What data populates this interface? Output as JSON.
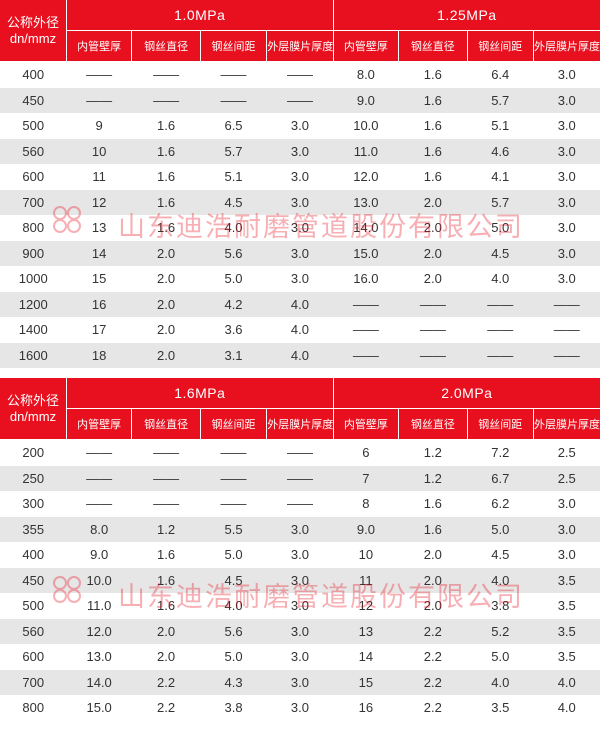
{
  "header": {
    "dn_label_line1": "公称外径",
    "dn_label_line2": "dn/mmz",
    "sub_columns": [
      "内管壁厚",
      "钢丝直径",
      "钢丝间距",
      "外层膜片厚度"
    ]
  },
  "tables": [
    {
      "pressures": [
        "1.0MPa",
        "1.25MPa"
      ],
      "rows": [
        [
          "400",
          "——",
          "——",
          "——",
          "——",
          "8.0",
          "1.6",
          "6.4",
          "3.0"
        ],
        [
          "450",
          "——",
          "——",
          "——",
          "——",
          "9.0",
          "1.6",
          "5.7",
          "3.0"
        ],
        [
          "500",
          "9",
          "1.6",
          "6.5",
          "3.0",
          "10.0",
          "1.6",
          "5.1",
          "3.0"
        ],
        [
          "560",
          "10",
          "1.6",
          "5.7",
          "3.0",
          "11.0",
          "1.6",
          "4.6",
          "3.0"
        ],
        [
          "600",
          "11",
          "1.6",
          "5.1",
          "3.0",
          "12.0",
          "1.6",
          "4.1",
          "3.0"
        ],
        [
          "700",
          "12",
          "1.6",
          "4.5",
          "3.0",
          "13.0",
          "2.0",
          "5.7",
          "3.0"
        ],
        [
          "800",
          "13",
          "1.6",
          "4.0",
          "3.0",
          "14.0",
          "2.0",
          "5.0",
          "3.0"
        ],
        [
          "900",
          "14",
          "2.0",
          "5.6",
          "3.0",
          "15.0",
          "2.0",
          "4.5",
          "3.0"
        ],
        [
          "1000",
          "15",
          "2.0",
          "5.0",
          "3.0",
          "16.0",
          "2.0",
          "4.0",
          "3.0"
        ],
        [
          "1200",
          "16",
          "2.0",
          "4.2",
          "4.0",
          "——",
          "——",
          "——",
          "——"
        ],
        [
          "1400",
          "17",
          "2.0",
          "3.6",
          "4.0",
          "——",
          "——",
          "——",
          "——"
        ],
        [
          "1600",
          "18",
          "2.0",
          "3.1",
          "4.0",
          "——",
          "——",
          "——",
          "——"
        ]
      ]
    },
    {
      "pressures": [
        "1.6MPa",
        "2.0MPa"
      ],
      "rows": [
        [
          "200",
          "——",
          "——",
          "——",
          "——",
          "6",
          "1.2",
          "7.2",
          "2.5"
        ],
        [
          "250",
          "——",
          "——",
          "——",
          "——",
          "7",
          "1.2",
          "6.7",
          "2.5"
        ],
        [
          "300",
          "——",
          "——",
          "——",
          "——",
          "8",
          "1.6",
          "6.2",
          "3.0"
        ],
        [
          "355",
          "8.0",
          "1.2",
          "5.5",
          "3.0",
          "9.0",
          "1.6",
          "5.0",
          "3.0"
        ],
        [
          "400",
          "9.0",
          "1.6",
          "5.0",
          "3.0",
          "10",
          "2.0",
          "4.5",
          "3.0"
        ],
        [
          "450",
          "10.0",
          "1.6",
          "4.5",
          "3.0",
          "11",
          "2.0",
          "4.0",
          "3.5"
        ],
        [
          "500",
          "11.0",
          "1.6",
          "4.0",
          "3.0",
          "12",
          "2.0",
          "3.8",
          "3.5"
        ],
        [
          "560",
          "12.0",
          "2.0",
          "5.6",
          "3.0",
          "13",
          "2.2",
          "5.2",
          "3.5"
        ],
        [
          "600",
          "13.0",
          "2.0",
          "5.0",
          "3.0",
          "14",
          "2.2",
          "5.0",
          "3.5"
        ],
        [
          "700",
          "14.0",
          "2.2",
          "4.3",
          "3.0",
          "15",
          "2.2",
          "4.0",
          "4.0"
        ],
        [
          "800",
          "15.0",
          "2.2",
          "3.8",
          "3.0",
          "16",
          "2.2",
          "3.5",
          "4.0"
        ]
      ]
    }
  ],
  "watermark": {
    "text": "山东迪浩耐磨管道股份有限公司",
    "logo_icon": "dh-logo-icon"
  },
  "colors": {
    "header_red": "#e8101f",
    "stripe_gray": "#e6e6e6"
  }
}
